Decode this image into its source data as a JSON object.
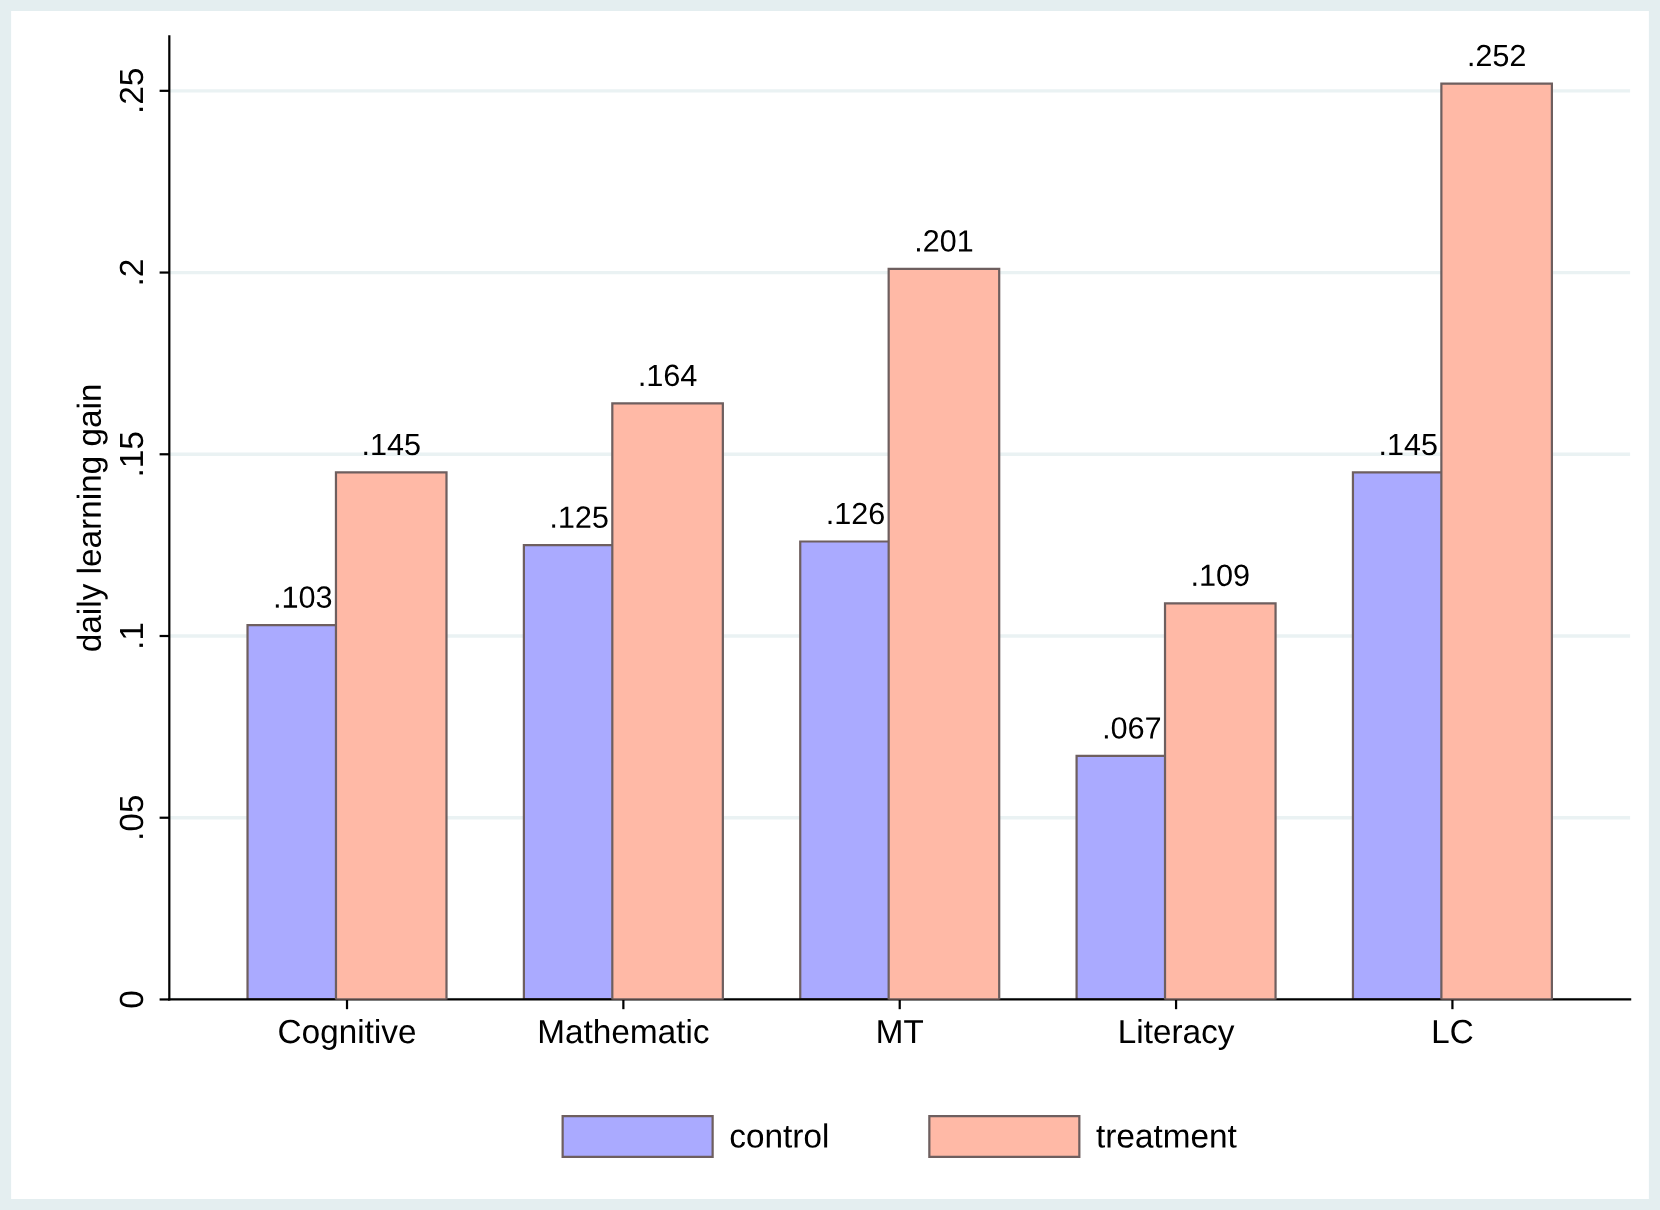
{
  "chart_data": {
    "type": "bar",
    "ylabel": "daily learning gain",
    "categories": [
      "Cognitive",
      "Mathematic",
      "MT",
      "Literacy",
      "LC"
    ],
    "series": [
      {
        "name": "control",
        "color": "#aaaaff",
        "values": [
          0.103,
          0.125,
          0.126,
          0.067,
          0.145
        ],
        "value_labels": [
          ".103",
          ".125",
          ".126",
          ".067",
          ".145"
        ]
      },
      {
        "name": "treatment",
        "color": "#ffb9a6",
        "values": [
          0.145,
          0.164,
          0.201,
          0.109,
          0.252
        ],
        "value_labels": [
          ".145",
          ".164",
          ".201",
          ".109",
          ".252"
        ]
      }
    ],
    "ylim": [
      0,
      0.265
    ],
    "yticks": [
      0,
      {
        "value": 0.05,
        "label": ".05"
      },
      {
        "value": 0.1,
        "label": ".1"
      },
      {
        "value": 0.15,
        "label": ".15"
      },
      {
        "value": 0.2,
        "label": ".2"
      },
      {
        "value": 0.25,
        "label": ".25"
      }
    ],
    "grid": "y",
    "legend": "bottom"
  }
}
